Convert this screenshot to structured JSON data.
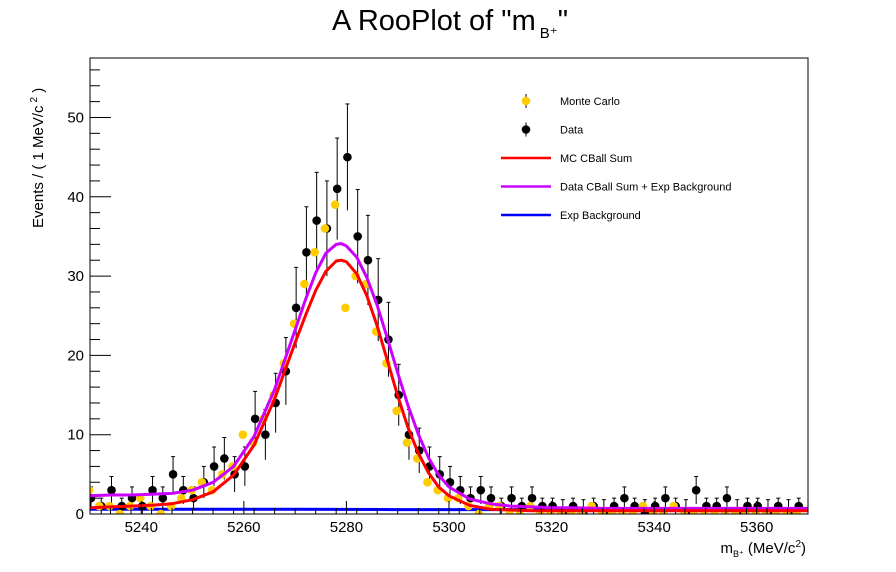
{
  "chart_data": {
    "type": "scatter",
    "title": "A RooPlot of \"m",
    "title_sub": "B⁺",
    "title_close": "\"",
    "xlabel": "m",
    "xlabel_sub": "B⁺",
    "xlabel_unit": " (MeV/c",
    "xlabel_sup": "2",
    "xlabel_close": ")",
    "ylabel": "Events / ( 1 MeV/c",
    "ylabel_sup": "2",
    "ylabel_close": " )",
    "xlim": [
      5230,
      5370
    ],
    "ylim": [
      0,
      57.5
    ],
    "xticks": [
      "5240",
      "5260",
      "5280",
      "5300",
      "5320",
      "5340",
      "5360"
    ],
    "xtick_values": [
      5240,
      5260,
      5280,
      5300,
      5320,
      5340,
      5360
    ],
    "yticks": [
      "0",
      "10",
      "20",
      "30",
      "40",
      "50"
    ],
    "ytick_values": [
      0,
      10,
      20,
      30,
      40,
      50
    ],
    "grid": false,
    "legend_position": "top-right",
    "colors": {
      "monte_carlo": "#ffcc00",
      "data": "#000000",
      "mc_cball": "#ff0000",
      "data_cball": "#cc00ff",
      "exp_bkg": "#0000ff"
    },
    "legend": [
      {
        "label": "Monte Carlo",
        "kind": "marker",
        "color": "#ffcc00"
      },
      {
        "label": "Data",
        "kind": "marker",
        "color": "#000000"
      },
      {
        "label": "MC CBall Sum",
        "kind": "line",
        "color": "#ff0000"
      },
      {
        "label": "Data CBall Sum + Exp Background",
        "kind": "line",
        "color": "#cc00ff"
      },
      {
        "label": "Exp Background",
        "kind": "line",
        "color": "#0000ff"
      }
    ],
    "series": [
      {
        "name": "Data",
        "x": [
          5230,
          5232,
          5234,
          5236,
          5238,
          5240,
          5242,
          5244,
          5246,
          5248,
          5250,
          5252,
          5254,
          5256,
          5258,
          5260,
          5262,
          5264,
          5266,
          5268,
          5270,
          5272,
          5274,
          5276,
          5278,
          5280,
          5282,
          5284,
          5286,
          5288,
          5290,
          5292,
          5294,
          5296,
          5298,
          5300,
          5302,
          5304,
          5306,
          5308,
          5310,
          5312,
          5314,
          5316,
          5318,
          5320,
          5322,
          5324,
          5326,
          5328,
          5330,
          5332,
          5334,
          5336,
          5338,
          5340,
          5342,
          5344,
          5346,
          5348,
          5350,
          5352,
          5354,
          5356,
          5358,
          5360,
          5362,
          5364,
          5366,
          5368
        ],
        "y": [
          2,
          1,
          3,
          1,
          2,
          1,
          3,
          2,
          5,
          3,
          2,
          4,
          6,
          7,
          5,
          6,
          12,
          10,
          14,
          18,
          26,
          33,
          37,
          36,
          41,
          45,
          35,
          32,
          27,
          22,
          15,
          10,
          8,
          6,
          5,
          4,
          3,
          2,
          3,
          2,
          1,
          2,
          1,
          2,
          1,
          1,
          0,
          1,
          0,
          1,
          0,
          1,
          2,
          1,
          0,
          1,
          2,
          1,
          0,
          3,
          1,
          1,
          2,
          0,
          1,
          1,
          0,
          1,
          0,
          1
        ]
      },
      {
        "name": "Monte Carlo",
        "x": [
          5230,
          5232,
          5234,
          5236,
          5238,
          5240,
          5242,
          5244,
          5246,
          5248,
          5250,
          5252,
          5254,
          5256,
          5258,
          5260,
          5262,
          5264,
          5266,
          5268,
          5270,
          5272,
          5274,
          5276,
          5278,
          5280,
          5282,
          5284,
          5286,
          5288,
          5290,
          5292,
          5294,
          5296,
          5298,
          5300,
          5302,
          5304,
          5306,
          5308,
          5310,
          5312,
          5314,
          5316,
          5318,
          5320,
          5322,
          5324,
          5326,
          5328,
          5330,
          5332,
          5334,
          5336,
          5338,
          5340,
          5342,
          5344,
          5346,
          5348,
          5350,
          5352,
          5354,
          5356,
          5358,
          5360,
          5362,
          5364,
          5366,
          5368
        ],
        "y": [
          3,
          1,
          1,
          0,
          1,
          2,
          1,
          0,
          1,
          2,
          3,
          4,
          3,
          5,
          6,
          10,
          9,
          12,
          15,
          19,
          24,
          29,
          33,
          36,
          39,
          26,
          30,
          29,
          23,
          19,
          13,
          9,
          7,
          4,
          3,
          2,
          2,
          1,
          0,
          1,
          1,
          0,
          0,
          1,
          0,
          0,
          0,
          0,
          0,
          1,
          0,
          0,
          0,
          0,
          1,
          0,
          0,
          1,
          0,
          0,
          0,
          0,
          0,
          0,
          0,
          0,
          0,
          0,
          0,
          0
        ]
      },
      {
        "name": "MC CBall Sum",
        "x": [
          5230,
          5234,
          5238,
          5242,
          5246,
          5250,
          5254,
          5258,
          5262,
          5266,
          5270,
          5272,
          5274,
          5276,
          5278,
          5279,
          5280,
          5282,
          5284,
          5286,
          5288,
          5290,
          5292,
          5294,
          5296,
          5298,
          5300,
          5304,
          5308,
          5312,
          5316,
          5320,
          5324,
          5330,
          5340,
          5350,
          5360,
          5370
        ],
        "y": [
          0.8,
          0.9,
          1.0,
          1.1,
          1.3,
          1.8,
          2.8,
          4.9,
          8.7,
          14.5,
          21.6,
          25.0,
          28.2,
          30.6,
          31.9,
          32.0,
          31.8,
          30.3,
          27.5,
          23.7,
          19.3,
          14.9,
          10.9,
          7.7,
          5.2,
          3.4,
          2.3,
          1.1,
          0.6,
          0.5,
          0.4,
          0.4,
          0.4,
          0.4,
          0.4,
          0.4,
          0.4,
          0.4
        ]
      },
      {
        "name": "Data CBall Sum + Exp Background",
        "x": [
          5230,
          5234,
          5238,
          5242,
          5246,
          5250,
          5254,
          5258,
          5262,
          5266,
          5270,
          5272,
          5274,
          5276,
          5278,
          5279,
          5280,
          5282,
          5284,
          5286,
          5288,
          5290,
          5292,
          5294,
          5296,
          5298,
          5300,
          5304,
          5308,
          5312,
          5316,
          5320,
          5324,
          5330,
          5340,
          5350,
          5360,
          5370
        ],
        "y": [
          2.3,
          2.4,
          2.4,
          2.5,
          2.6,
          3.0,
          4.0,
          6.0,
          9.8,
          15.7,
          23.2,
          27.0,
          30.4,
          32.9,
          34.0,
          34.1,
          33.8,
          32.4,
          29.8,
          26.3,
          22.1,
          17.8,
          13.7,
          10.1,
          7.1,
          4.9,
          3.4,
          1.9,
          1.3,
          1.0,
          0.9,
          0.8,
          0.8,
          0.7,
          0.7,
          0.7,
          0.7,
          0.7
        ]
      },
      {
        "name": "Exp Background",
        "x": [
          5230,
          5250,
          5270,
          5290,
          5310,
          5330,
          5350,
          5370
        ],
        "y": [
          0.6,
          0.6,
          0.6,
          0.55,
          0.55,
          0.5,
          0.5,
          0.5
        ]
      }
    ]
  }
}
